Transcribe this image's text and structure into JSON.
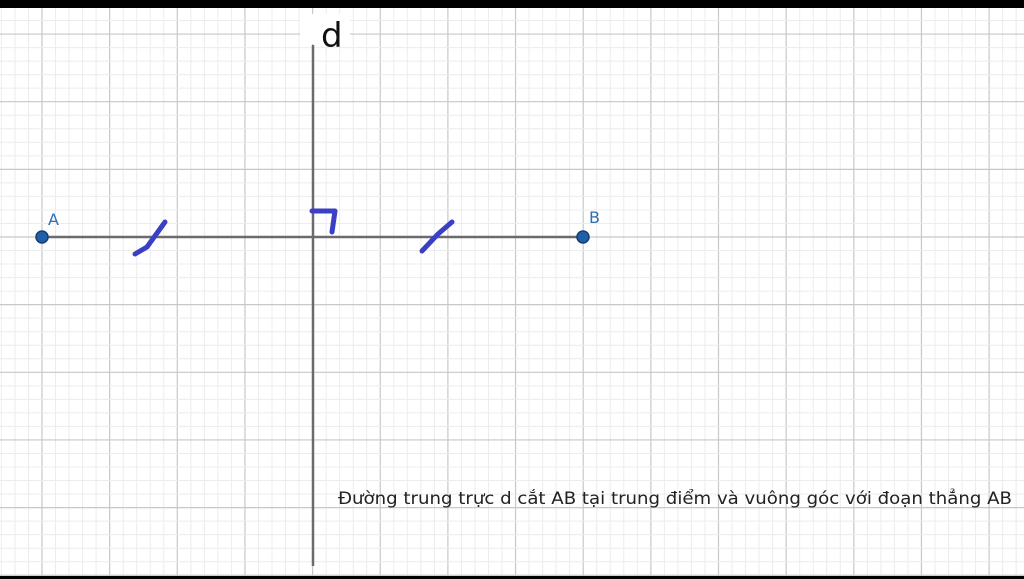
{
  "points": [
    {
      "name": "A",
      "color": "#1f5fa8"
    },
    {
      "name": "B",
      "color": "#1f5fa8"
    }
  ],
  "line_label": "d",
  "caption": "Đường trung trực d cắt AB tại trung điểm và vuông góc với đoạn thẳng AB",
  "colors": {
    "background": "#ffffff",
    "grid_major": "#c8c8c8",
    "grid_minor": "#ececec",
    "lines": "#6b6b6b",
    "marks": "#3a3fc4",
    "frame": "#000000"
  }
}
